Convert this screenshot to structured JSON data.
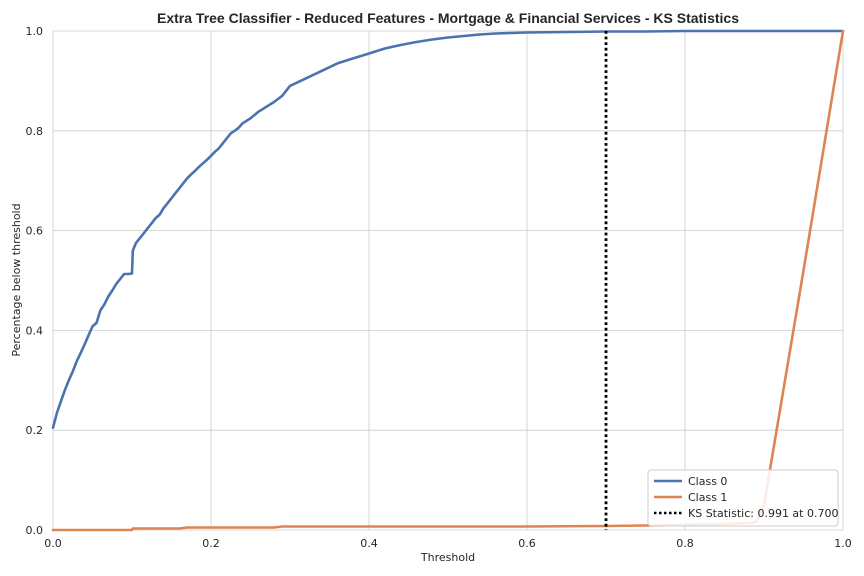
{
  "chart_data": {
    "type": "line",
    "title": "Extra Tree Classifier - Reduced Features - Mortgage & Financial Services - KS Statistics",
    "xlabel": "Threshold",
    "ylabel": "Percentage below threshold",
    "xlim": [
      0,
      1
    ],
    "ylim": [
      0,
      1
    ],
    "x_ticks": [
      "0.0",
      "0.2",
      "0.4",
      "0.6",
      "0.8",
      "1.0"
    ],
    "y_ticks": [
      "0.0",
      "0.2",
      "0.4",
      "0.6",
      "0.8",
      "1.0"
    ],
    "grid": true,
    "legend_position": "lower-right",
    "series": [
      {
        "name": "Class 0",
        "color": "#4c72b0",
        "x": [
          0.0,
          0.005,
          0.01,
          0.015,
          0.02,
          0.025,
          0.03,
          0.035,
          0.04,
          0.045,
          0.05,
          0.055,
          0.06,
          0.065,
          0.07,
          0.075,
          0.08,
          0.085,
          0.09,
          0.095,
          0.1,
          0.101,
          0.105,
          0.11,
          0.115,
          0.12,
          0.125,
          0.13,
          0.135,
          0.14,
          0.145,
          0.15,
          0.155,
          0.16,
          0.165,
          0.17,
          0.175,
          0.18,
          0.185,
          0.19,
          0.195,
          0.2,
          0.205,
          0.21,
          0.215,
          0.22,
          0.225,
          0.23,
          0.235,
          0.24,
          0.25,
          0.26,
          0.27,
          0.28,
          0.29,
          0.3,
          0.32,
          0.34,
          0.36,
          0.38,
          0.4,
          0.42,
          0.44,
          0.46,
          0.48,
          0.5,
          0.52,
          0.54,
          0.56,
          0.58,
          0.6,
          0.65,
          0.7,
          0.75,
          0.8,
          0.85,
          0.9,
          0.95,
          1.0
        ],
        "y": [
          0.205,
          0.235,
          0.258,
          0.28,
          0.3,
          0.318,
          0.338,
          0.355,
          0.372,
          0.39,
          0.408,
          0.415,
          0.44,
          0.452,
          0.468,
          0.48,
          0.493,
          0.503,
          0.513,
          0.513,
          0.514,
          0.56,
          0.575,
          0.585,
          0.595,
          0.605,
          0.615,
          0.625,
          0.632,
          0.645,
          0.655,
          0.665,
          0.675,
          0.685,
          0.695,
          0.705,
          0.713,
          0.72,
          0.728,
          0.735,
          0.742,
          0.75,
          0.758,
          0.765,
          0.775,
          0.785,
          0.795,
          0.8,
          0.806,
          0.815,
          0.825,
          0.838,
          0.848,
          0.858,
          0.87,
          0.89,
          0.905,
          0.92,
          0.935,
          0.945,
          0.955,
          0.965,
          0.972,
          0.978,
          0.983,
          0.987,
          0.99,
          0.993,
          0.995,
          0.996,
          0.997,
          0.998,
          0.999,
          0.999,
          1.0,
          1.0,
          1.0,
          1.0,
          1.0
        ]
      },
      {
        "name": "Class 1",
        "color": "#dd8452",
        "x": [
          0.0,
          0.1,
          0.101,
          0.16,
          0.17,
          0.28,
          0.29,
          0.6,
          0.7,
          0.8,
          0.85,
          0.88,
          0.89,
          0.9,
          0.95,
          1.0
        ],
        "y": [
          0.0,
          0.0,
          0.003,
          0.003,
          0.005,
          0.005,
          0.007,
          0.007,
          0.008,
          0.01,
          0.012,
          0.014,
          0.016,
          0.05,
          0.52,
          1.0
        ]
      }
    ],
    "ks_line": {
      "name": "KS Statistic: 0.991 at 0.700",
      "x": 0.7,
      "color": "#000000"
    }
  }
}
